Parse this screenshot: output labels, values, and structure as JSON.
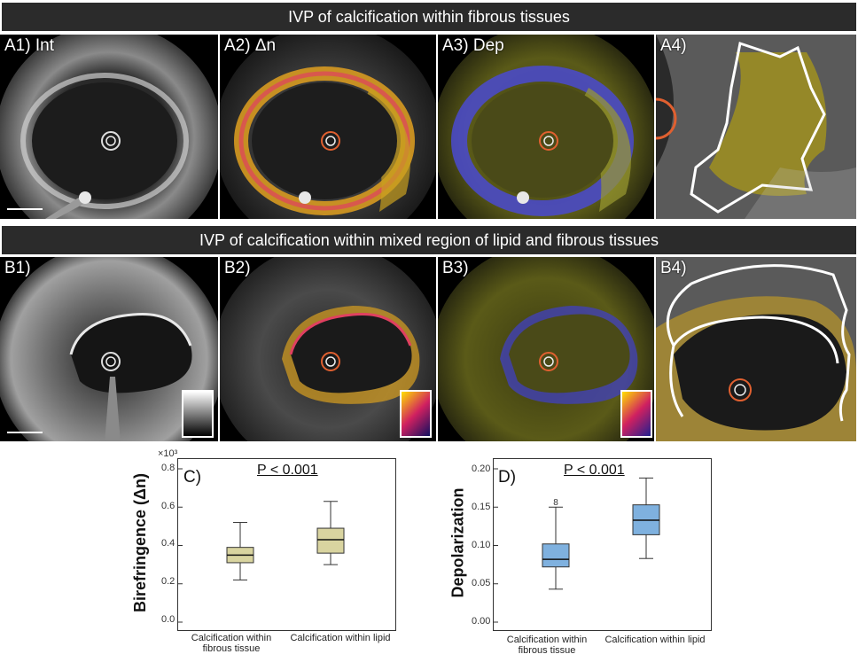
{
  "banner_a": {
    "title": "IVP of calcification within fibrous tissues"
  },
  "banner_b": {
    "title": "IVP of calcification within mixed region of lipid and fibrous tissues"
  },
  "panels_a": [
    {
      "label": "A1) Int"
    },
    {
      "label": "A2) Δn"
    },
    {
      "label": "A3) Dep"
    },
    {
      "label": "A4)"
    }
  ],
  "panels_b": [
    {
      "label": "B1)"
    },
    {
      "label": "B2)"
    },
    {
      "label": "B3)"
    },
    {
      "label": "B4)"
    }
  ],
  "colors": {
    "banner": "#2b2b2b",
    "box_birefringence": "#d9d4a0",
    "box_depolarization": "#7fb1df",
    "outline": "#ffffff"
  },
  "chart_data": [
    {
      "type": "box",
      "panel_label": "C)",
      "annotation": "P < 0.001",
      "ylabel": "Birefringence (Δn)",
      "multiplier_label": "×10³",
      "ylim": [
        0,
        0.8
      ],
      "y_ticks": [
        "0.0",
        "0.2",
        "0.4",
        "0.6",
        "0.8"
      ],
      "categories": [
        "Calcification within fibrous tissue",
        "Calcification within lipid"
      ],
      "boxes": [
        {
          "min": 0.22,
          "q1": 0.31,
          "median": 0.35,
          "q3": 0.39,
          "max": 0.52
        },
        {
          "min": 0.3,
          "q1": 0.36,
          "median": 0.43,
          "q3": 0.49,
          "max": 0.63
        }
      ],
      "outliers": []
    },
    {
      "type": "box",
      "panel_label": "D)",
      "annotation": "P < 0.001",
      "ylabel": "Depolarization",
      "ylim": [
        0,
        0.2
      ],
      "y_ticks": [
        "0.00",
        "0.05",
        "0.10",
        "0.15",
        "0.20"
      ],
      "categories": [
        "Calcification within fibrous tissue",
        "Calcification within lipid"
      ],
      "boxes": [
        {
          "min": 0.043,
          "q1": 0.072,
          "median": 0.082,
          "q3": 0.102,
          "max": 0.15
        },
        {
          "min": 0.083,
          "q1": 0.114,
          "median": 0.133,
          "q3": 0.153,
          "max": 0.188
        }
      ],
      "outliers": [
        {
          "category": 0,
          "value": 0.157,
          "label": "8"
        }
      ]
    }
  ]
}
